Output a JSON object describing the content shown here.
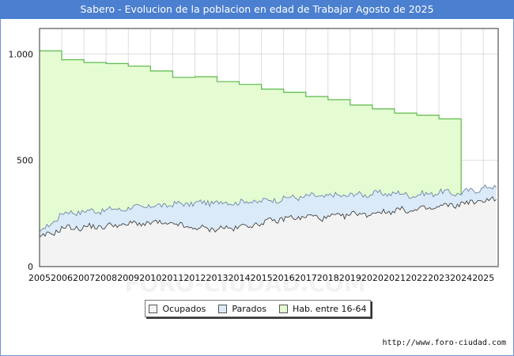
{
  "title": "Sabero - Evolucion de la poblacion en edad de Trabajar Agosto de 2025",
  "credit": "http://www.foro-ciudad.com",
  "watermark": "FORO-CIUDAD.COM",
  "colors": {
    "title_bg": "#4b7fcf",
    "hab_fill": "#e5fcd2",
    "hab_line": "#5cb94a",
    "parados_fill": "#dbeaf8",
    "parados_line": "#6c87a8",
    "ocupados_fill": "#f3f3f3",
    "ocupados_line": "#444444",
    "grid": "#dddddd"
  },
  "chart_data": {
    "type": "area",
    "title": "Sabero - Evolucion de la poblacion en edad de Trabajar Agosto de 2025",
    "xlabel": "",
    "ylabel": "",
    "xlim": [
      2005,
      2025.67
    ],
    "ylim": [
      0,
      1120
    ],
    "yticks": [
      0,
      500,
      1000
    ],
    "ytick_labels": [
      "0",
      "500",
      "1.000"
    ],
    "xticks": [
      "2005",
      "2006",
      "2007",
      "2008",
      "2009",
      "2010",
      "2011",
      "2012",
      "2013",
      "2014",
      "2015",
      "2016",
      "2017",
      "2018",
      "2019",
      "2020",
      "2021",
      "2022",
      "2023",
      "2024",
      "2025"
    ],
    "grid": true,
    "legend_position": "bottom",
    "legend": [
      "Ocupados",
      "Parados",
      "Hab. entre 16-64"
    ],
    "series": [
      {
        "name": "Hab. entre 16-64",
        "step": true,
        "x": [
          2005,
          2006,
          2007,
          2008,
          2009,
          2010,
          2011,
          2012,
          2013,
          2014,
          2015,
          2016,
          2017,
          2018,
          2019,
          2020,
          2021,
          2022,
          2023,
          2024
        ],
        "values": [
          1015,
          973,
          960,
          955,
          943,
          920,
          890,
          893,
          870,
          857,
          835,
          820,
          800,
          785,
          760,
          742,
          722,
          712,
          695,
          0
        ]
      },
      {
        "name": "Parados",
        "yearly_start": [
          150,
          250,
          260,
          265,
          275,
          283,
          292,
          298,
          302,
          303,
          308,
          320,
          330,
          332,
          337,
          342,
          345,
          335,
          350,
          345,
          370
        ],
        "last_value": 375
      },
      {
        "name": "Ocupados",
        "yearly_start": [
          130,
          180,
          185,
          190,
          200,
          205,
          200,
          180,
          178,
          185,
          205,
          225,
          235,
          230,
          245,
          250,
          265,
          265,
          280,
          295,
          310
        ],
        "last_value": 325
      }
    ]
  }
}
